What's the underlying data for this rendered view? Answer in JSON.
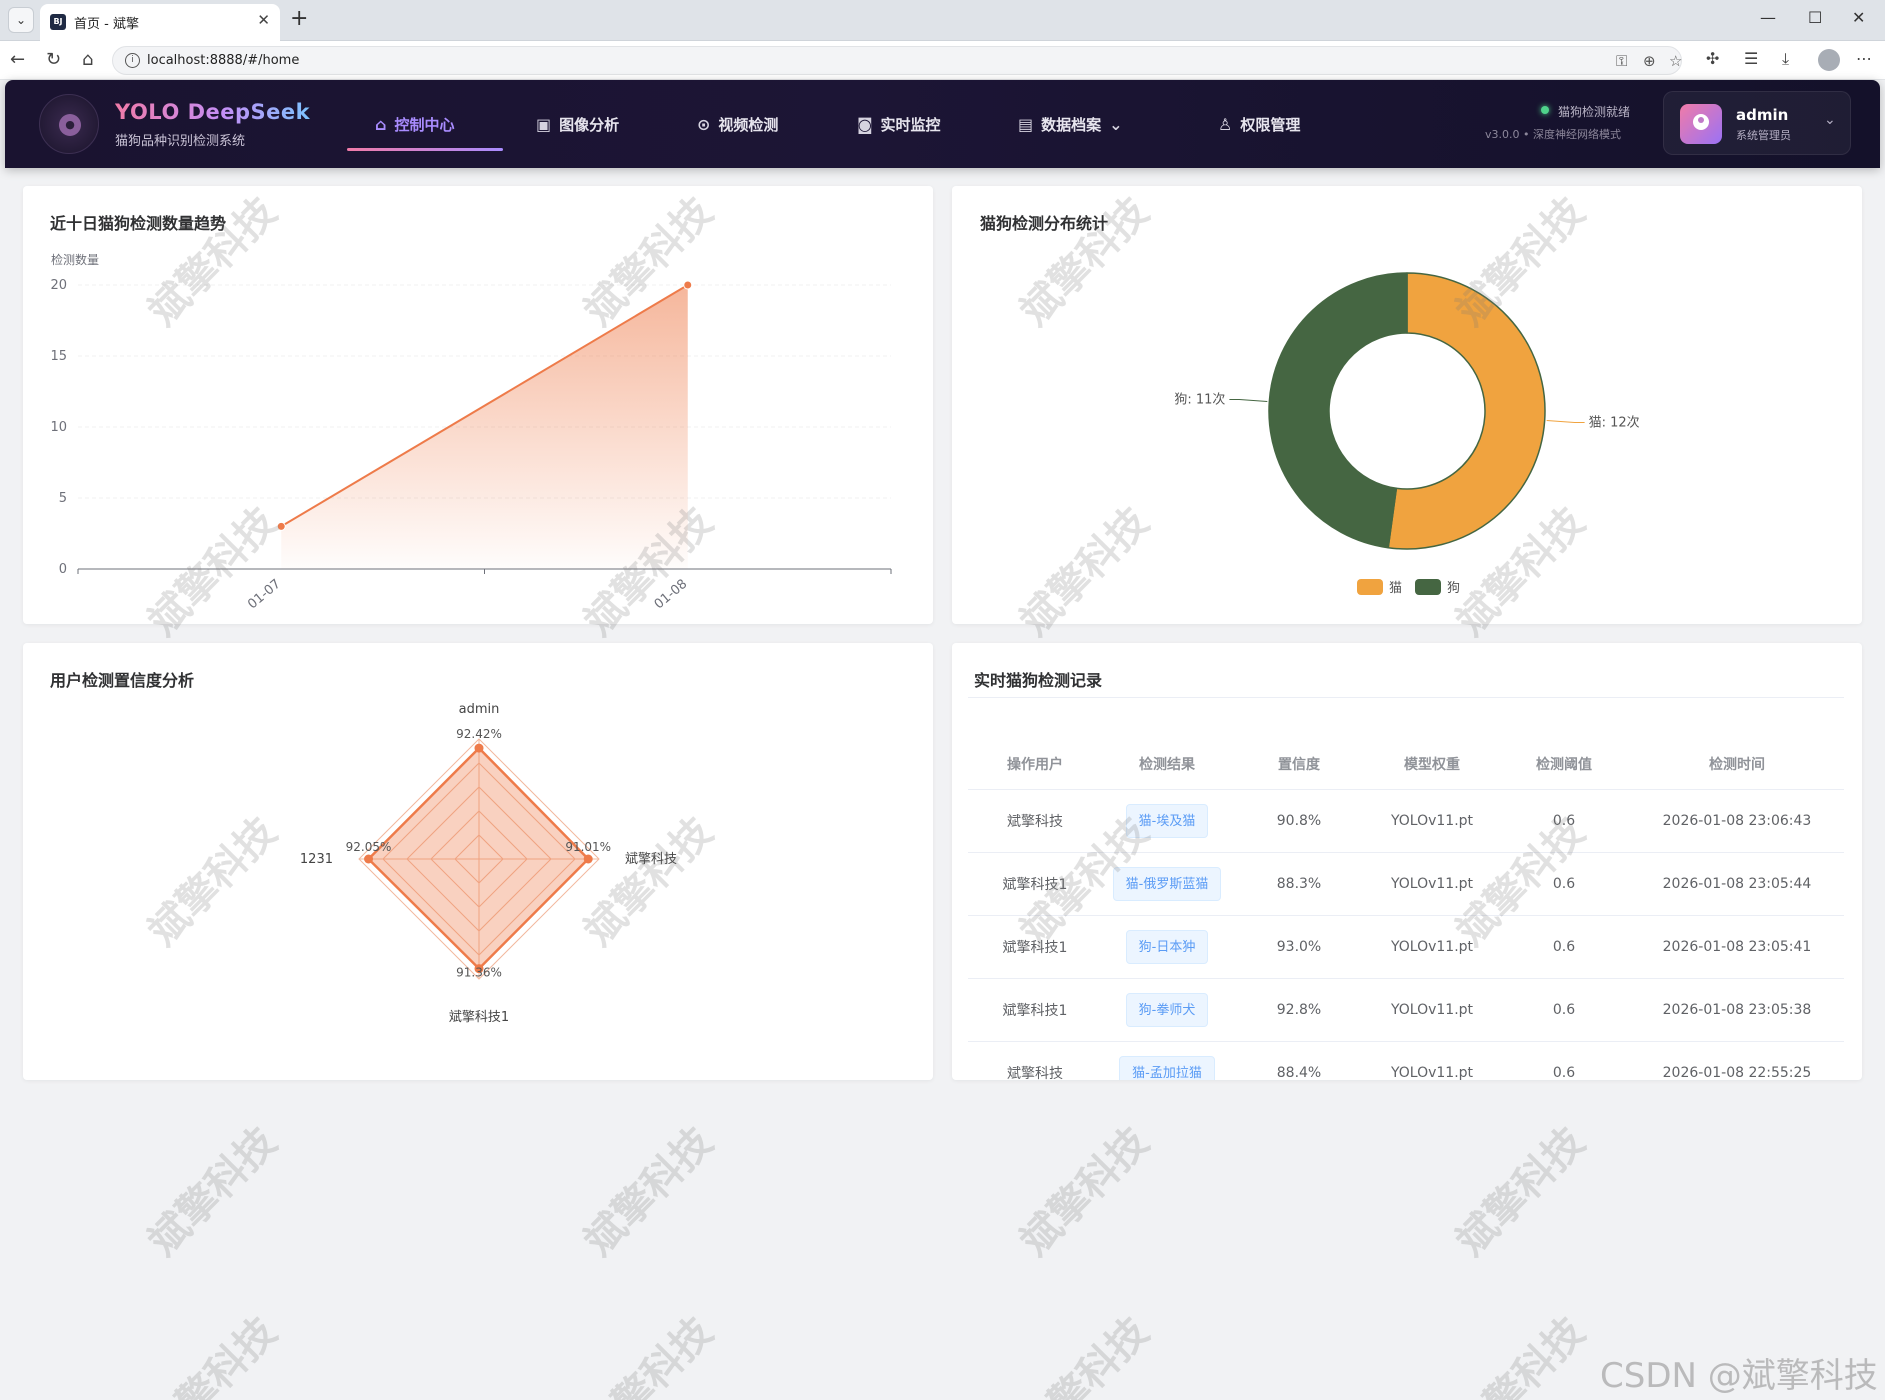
{
  "browser": {
    "tab_title": "首页 - 斌擎",
    "favicon_text": "BJ",
    "url": "localhost:8888/#/home"
  },
  "header": {
    "logo_title": "YOLO DeepSeek",
    "logo_subtitle": "猫狗品种识别检测系统",
    "nav": [
      {
        "label": "控制中心",
        "icon": "home-icon",
        "active": true
      },
      {
        "label": "图像分析",
        "icon": "image-icon"
      },
      {
        "label": "视频检测",
        "icon": "play-icon"
      },
      {
        "label": "实时监控",
        "icon": "camera-icon"
      },
      {
        "label": "数据档案",
        "icon": "document-icon",
        "has_dropdown": true
      },
      {
        "label": "权限管理",
        "icon": "user-icon"
      }
    ],
    "status": "猫狗检测就绪",
    "version": "v3.0.0 • 深度神经网络模式",
    "user": {
      "name": "admin",
      "role": "系统管理员"
    }
  },
  "trend_card": {
    "title": "近十日猫狗检测数量趋势",
    "chart_data": {
      "type": "area",
      "x": [
        "01-07",
        "01-08"
      ],
      "values": [
        3,
        20
      ],
      "ylabel": "检测数量",
      "ylim": [
        0,
        20
      ],
      "yticks": [
        0,
        5,
        10,
        15,
        20
      ],
      "color": "#ee7b4a",
      "grid": true
    }
  },
  "pie_card": {
    "title": "猫狗检测分布统计",
    "chart_data": {
      "type": "pie",
      "donut": true,
      "slices": [
        {
          "name": "猫",
          "value": 12,
          "label": "猫: 12次",
          "color": "#f0a33f"
        },
        {
          "name": "狗",
          "value": 11,
          "label": "狗: 11次",
          "color": "#456642"
        }
      ],
      "legend": [
        "猫",
        "狗"
      ],
      "legend_position": "bottom-center"
    }
  },
  "radar_card": {
    "title": "用户检测置信度分析",
    "chart_data": {
      "type": "radar",
      "indicators": [
        "admin",
        "斌擎科技",
        "斌擎科技1",
        "1231"
      ],
      "values": [
        92.42,
        91.01,
        91.36,
        92.05
      ],
      "value_labels": [
        "92.42%",
        "91.01%",
        "91.36%",
        "92.05%"
      ],
      "color": "#ee7b4a"
    }
  },
  "records_card": {
    "title": "实时猫狗检测记录",
    "columns": [
      "操作用户",
      "检测结果",
      "置信度",
      "模型权重",
      "检测阈值",
      "检测时间"
    ],
    "rows": [
      {
        "user": "斌擎科技",
        "result": "猫-埃及猫",
        "confidence": "90.8%",
        "weight": "YOLOv11.pt",
        "threshold": "0.6",
        "time": "2026-01-08 23:06:43"
      },
      {
        "user": "斌擎科技1",
        "result": "猫-俄罗斯蓝猫",
        "confidence": "88.3%",
        "weight": "YOLOv11.pt",
        "threshold": "0.6",
        "time": "2026-01-08 23:05:44"
      },
      {
        "user": "斌擎科技1",
        "result": "狗-日本狆",
        "confidence": "93.0%",
        "weight": "YOLOv11.pt",
        "threshold": "0.6",
        "time": "2026-01-08 23:05:41"
      },
      {
        "user": "斌擎科技1",
        "result": "狗-拳师犬",
        "confidence": "92.8%",
        "weight": "YOLOv11.pt",
        "threshold": "0.6",
        "time": "2026-01-08 23:05:38"
      },
      {
        "user": "斌擎科技",
        "result": "猫-孟加拉猫",
        "confidence": "88.4%",
        "weight": "YOLOv11.pt",
        "threshold": "0.6",
        "time": "2026-01-08 22:55:25"
      }
    ]
  },
  "watermark": {
    "text": "斌擎科技",
    "footer_text": "CSDN @斌擎科技"
  }
}
